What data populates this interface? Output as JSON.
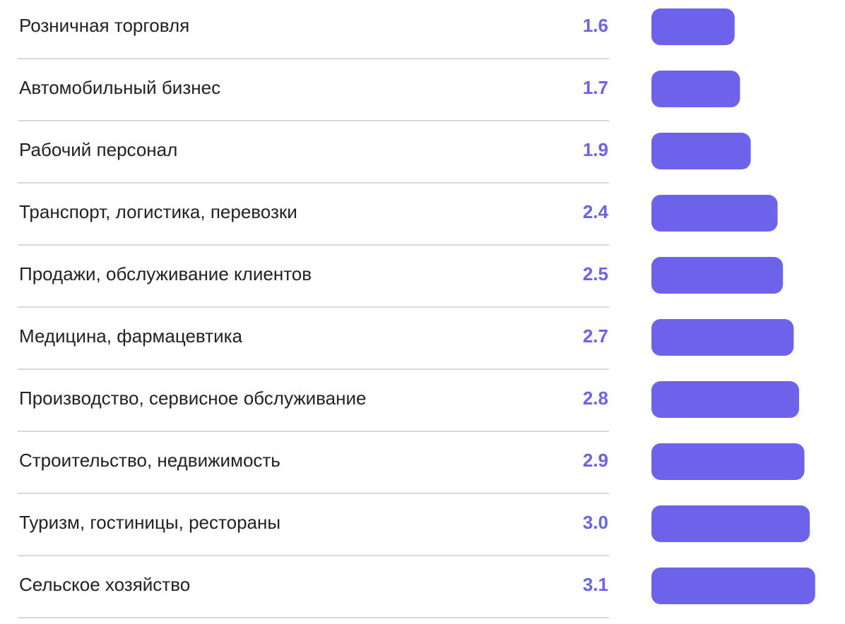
{
  "colors": {
    "accent": "#6c63ea",
    "divider": "#d9d9d9",
    "text": "#222222"
  },
  "chart_data": {
    "type": "bar",
    "orientation": "horizontal",
    "categories": [
      "Розничная торговля",
      "Автомобильный бизнес",
      "Рабочий персонал",
      "Транспорт, логистика, перевозки",
      "Продажи, обслуживание клиентов",
      "Медицина, фармацевтика",
      "Производство, сервисное обслуживание",
      "Строительство, недвижимость",
      "Туризм, гостиницы, рестораны",
      "Сельское хозяйство"
    ],
    "values": [
      1.6,
      1.7,
      1.9,
      2.4,
      2.5,
      2.7,
      2.8,
      2.9,
      3.0,
      3.1
    ],
    "value_labels": [
      "1.6",
      "1.7",
      "1.9",
      "2.4",
      "2.5",
      "2.7",
      "2.8",
      "2.9",
      "3.0",
      "3.1"
    ],
    "grid": false
  }
}
